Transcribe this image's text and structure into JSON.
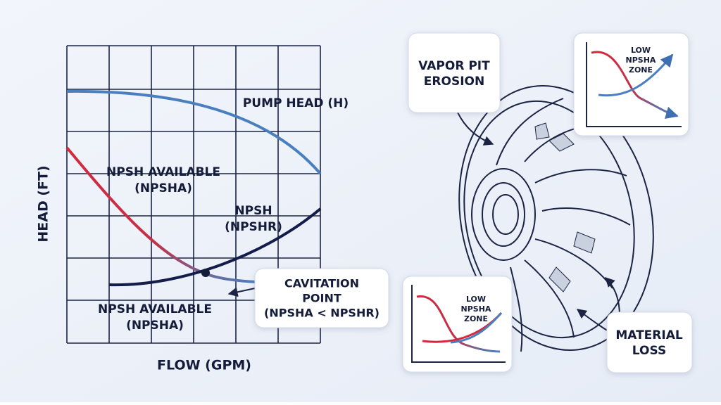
{
  "chart": {
    "y_label": "HEAD (FT)",
    "x_label": "FLOW (GPM)",
    "pump_head": "PUMP HEAD (H)",
    "npsha_upper": [
      "NPSH AVAILABLE",
      "(NPSHA)"
    ],
    "npshr": [
      "NPSH",
      "(NPSHR)"
    ],
    "npsha_lower": [
      "NPSH AVAILABLE",
      "(NPSHA)"
    ]
  },
  "callouts": {
    "cavitation": [
      "CAVITATION",
      "POINT",
      "(NPSHA < NPSHR)"
    ],
    "vapor_pit": [
      "VAPOR PIT",
      "EROSION"
    ],
    "zone_top": [
      "LOW",
      "NPSHA",
      "ZONE"
    ],
    "zone_bottom": [
      "LOW",
      "NPSHA",
      "ZONE"
    ],
    "material_loss": [
      "MATERIAL",
      "LOSS"
    ]
  }
}
